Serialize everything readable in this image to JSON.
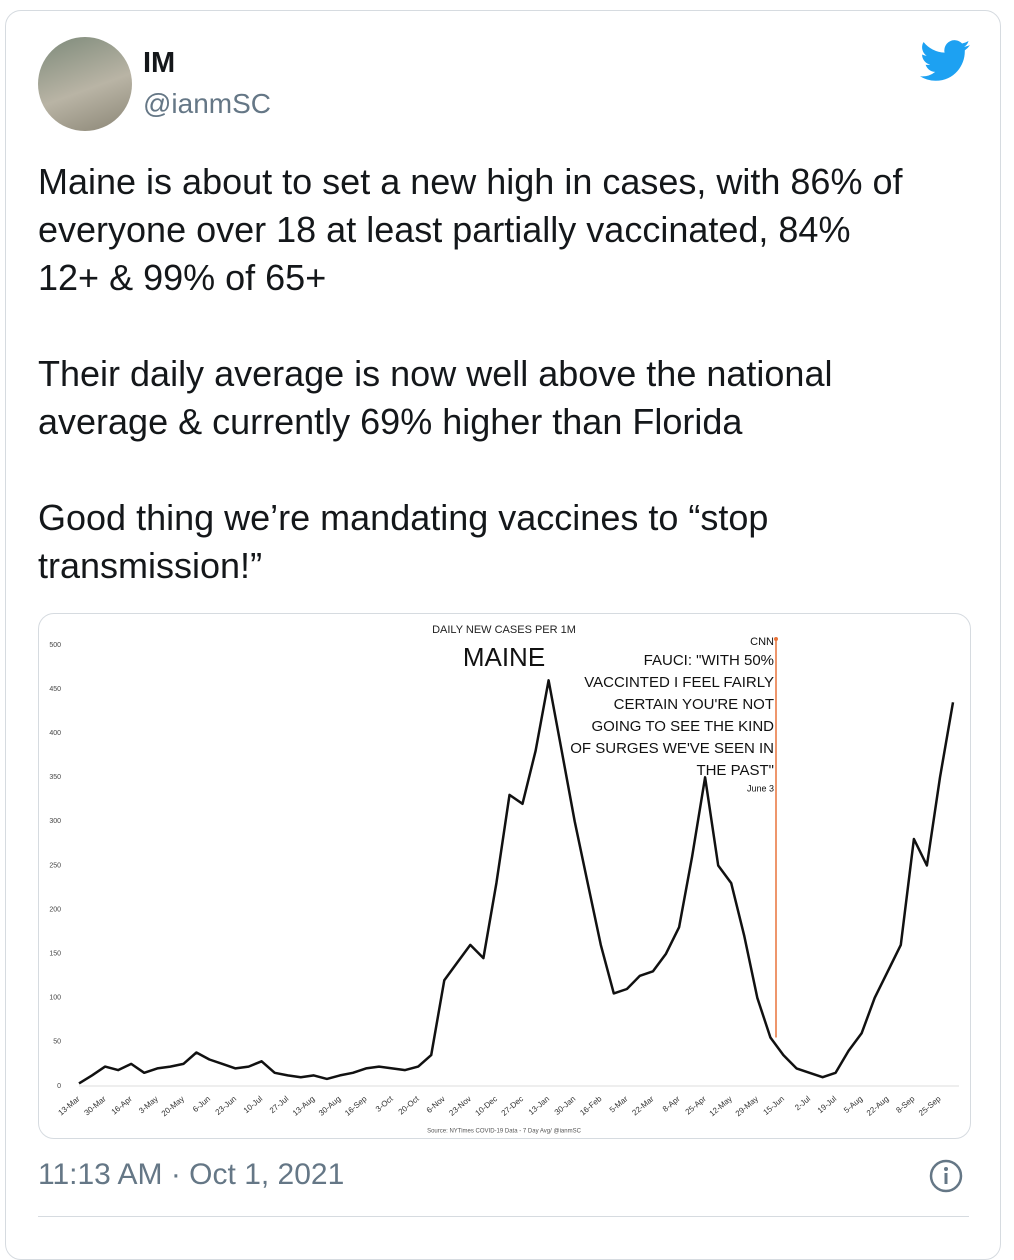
{
  "tweet": {
    "name": "IM",
    "handle": "@ianmSC",
    "text": [
      [
        "Maine is about to set a new high in cases, with 86% of",
        "everyone over 18 at least partially vaccinated, 84%",
        "12+ & 99% of 65+"
      ],
      [
        "Their daily average is now well above the national",
        "average & currently 69% higher than Florida"
      ],
      [
        "Good thing we’re mandating vaccines to “stop",
        "transmission!”"
      ]
    ],
    "timestamp": "11:13 AM · Oct 1, 2021"
  },
  "chart_data": {
    "type": "line",
    "title": "DAILY NEW CASES PER 1M",
    "subtitle": "MAINE",
    "annotation": {
      "source": "CNN",
      "lines": [
        "FAUCI: \"WITH 50%",
        "VACCINTED I FEEL FAIRLY",
        "CERTAIN YOU'RE NOT",
        "GOING TO SEE THE KIND",
        "OF SURGES WE'VE SEEN IN",
        "THE PAST\""
      ],
      "date": "June 3"
    },
    "source": "Source: NYTimes COVID-19 Data  - 7 Day Avg/ @ianmSC",
    "categories": [
      "13-Mar",
      null,
      "30-Mar",
      null,
      "16-Apr",
      null,
      "3-May",
      null,
      "20-May",
      null,
      "6-Jun",
      null,
      "23-Jun",
      null,
      "10-Jul",
      null,
      "27-Jul",
      null,
      "13-Aug",
      null,
      "30-Aug",
      null,
      "16-Sep",
      null,
      "3-Oct",
      null,
      "20-Oct",
      null,
      "6-Nov",
      null,
      "23-Nov",
      null,
      "10-Dec",
      null,
      "27-Dec",
      null,
      "13-Jan",
      null,
      "30-Jan",
      null,
      "16-Feb",
      null,
      "5-Mar",
      null,
      "22-Mar",
      null,
      "8-Apr",
      null,
      "25-Apr",
      null,
      "12-May",
      null,
      "29-May",
      null,
      "15-Jun",
      null,
      "2-Jul",
      null,
      "19-Jul",
      null,
      "5-Aug",
      null,
      "22-Aug",
      null,
      "8-Sep",
      null,
      "25-Sep",
      null
    ],
    "values": [
      3,
      12,
      22,
      18,
      25,
      15,
      20,
      22,
      25,
      38,
      30,
      25,
      20,
      22,
      28,
      15,
      12,
      10,
      12,
      8,
      12,
      15,
      20,
      22,
      20,
      18,
      22,
      35,
      120,
      140,
      160,
      145,
      230,
      330,
      320,
      380,
      460,
      380,
      300,
      230,
      160,
      105,
      110,
      125,
      130,
      150,
      180,
      260,
      350,
      250,
      230,
      170,
      100,
      55,
      35,
      20,
      15,
      10,
      15,
      40,
      60,
      100,
      130,
      160,
      280,
      250,
      350,
      435
    ],
    "color": "#111111",
    "ylim": [
      0,
      500
    ],
    "yticks": [
      0,
      50,
      100,
      150,
      200,
      250,
      300,
      350,
      400,
      450,
      500
    ],
    "grid": false
  }
}
